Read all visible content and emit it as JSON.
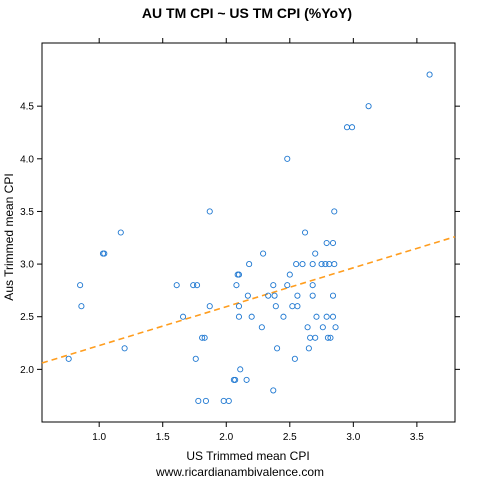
{
  "chart_data": {
    "type": "scatter",
    "title": "AU TM CPI ~ US TM CPI (%YoY)",
    "xlabel": "US Trimmed mean CPI",
    "ylabel": "Aus Trimmed mean CPI",
    "xlim": [
      0.55,
      3.8
    ],
    "ylim": [
      1.5,
      5.1
    ],
    "xticks": [
      1.0,
      1.5,
      2.0,
      2.5,
      3.0,
      3.5
    ],
    "xtick_labels": [
      "1.0",
      "1.5",
      "2.0",
      "2.5",
      "3.0",
      "3.5"
    ],
    "yticks": [
      2.0,
      2.5,
      3.0,
      3.5,
      4.0,
      4.5
    ],
    "ytick_labels": [
      "2.0",
      "2.5",
      "3.0",
      "3.5",
      "4.0",
      "4.5"
    ],
    "grid": false,
    "point_color": "#1f78d1",
    "trend_color": "#ff9d1e",
    "trendline": {
      "style": "dashed",
      "x": [
        0.55,
        3.8
      ],
      "y": [
        2.06,
        3.26
      ]
    },
    "points": [
      [
        0.76,
        2.1
      ],
      [
        0.85,
        2.8
      ],
      [
        0.86,
        2.6
      ],
      [
        1.03,
        3.1
      ],
      [
        1.04,
        3.1
      ],
      [
        1.17,
        3.3
      ],
      [
        1.2,
        2.2
      ],
      [
        1.61,
        2.8
      ],
      [
        1.66,
        2.5
      ],
      [
        1.74,
        2.8
      ],
      [
        1.76,
        2.1
      ],
      [
        1.77,
        2.8
      ],
      [
        1.78,
        1.7
      ],
      [
        1.81,
        2.3
      ],
      [
        1.83,
        2.3
      ],
      [
        1.84,
        1.7
      ],
      [
        1.87,
        3.5
      ],
      [
        1.87,
        2.6
      ],
      [
        1.98,
        1.7
      ],
      [
        2.02,
        1.7
      ],
      [
        2.06,
        1.9
      ],
      [
        2.08,
        2.8
      ],
      [
        2.07,
        1.9
      ],
      [
        2.09,
        2.9
      ],
      [
        2.1,
        2.6
      ],
      [
        2.1,
        2.9
      ],
      [
        2.1,
        2.5
      ],
      [
        2.11,
        2.0
      ],
      [
        2.16,
        1.9
      ],
      [
        2.17,
        2.7
      ],
      [
        2.18,
        3.0
      ],
      [
        2.2,
        2.5
      ],
      [
        2.28,
        2.4
      ],
      [
        2.29,
        3.1
      ],
      [
        2.33,
        2.7
      ],
      [
        2.37,
        1.8
      ],
      [
        2.37,
        2.8
      ],
      [
        2.38,
        2.7
      ],
      [
        2.39,
        2.6
      ],
      [
        2.4,
        2.2
      ],
      [
        2.45,
        2.5
      ],
      [
        2.48,
        2.8
      ],
      [
        2.48,
        4.0
      ],
      [
        2.5,
        2.9
      ],
      [
        2.52,
        2.6
      ],
      [
        2.54,
        2.1
      ],
      [
        2.55,
        3.0
      ],
      [
        2.56,
        2.7
      ],
      [
        2.56,
        2.6
      ],
      [
        2.6,
        3.0
      ],
      [
        2.62,
        3.3
      ],
      [
        2.64,
        2.4
      ],
      [
        2.65,
        2.2
      ],
      [
        2.66,
        2.3
      ],
      [
        2.68,
        2.7
      ],
      [
        2.68,
        2.8
      ],
      [
        2.68,
        3.0
      ],
      [
        2.7,
        2.3
      ],
      [
        2.7,
        3.1
      ],
      [
        2.71,
        2.5
      ],
      [
        2.75,
        3.0
      ],
      [
        2.76,
        2.4
      ],
      [
        2.78,
        3.0
      ],
      [
        2.79,
        3.2
      ],
      [
        2.79,
        2.5
      ],
      [
        2.8,
        2.3
      ],
      [
        2.81,
        3.0
      ],
      [
        2.82,
        2.3
      ],
      [
        2.84,
        3.2
      ],
      [
        2.84,
        2.7
      ],
      [
        2.84,
        2.5
      ],
      [
        2.85,
        3.5
      ],
      [
        2.85,
        3.0
      ],
      [
        2.86,
        2.4
      ],
      [
        2.95,
        4.3
      ],
      [
        2.99,
        4.3
      ],
      [
        3.12,
        4.5
      ],
      [
        3.6,
        4.8
      ]
    ]
  },
  "footer": "www.ricardianambivalence.com"
}
